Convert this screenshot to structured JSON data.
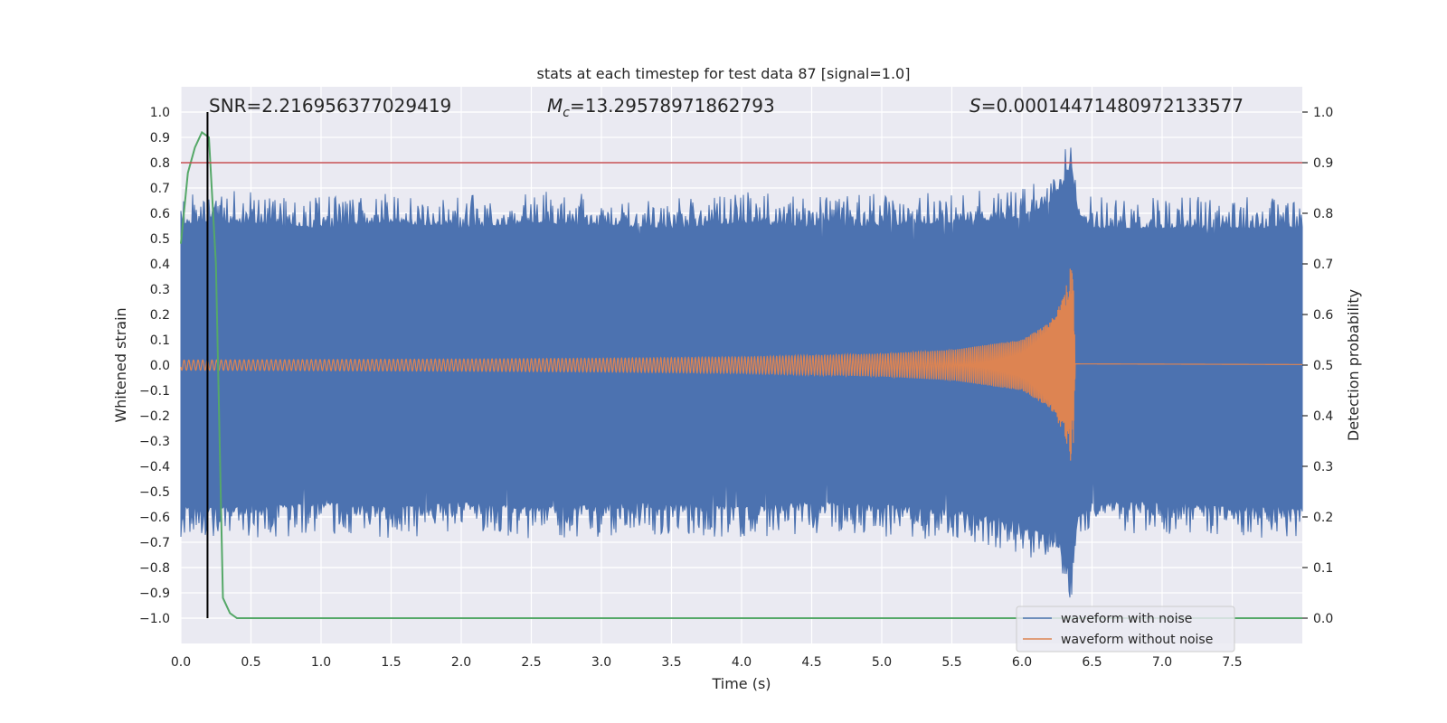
{
  "chart_data": {
    "type": "line",
    "title": "stats at each timestep for test data 87 [signal=1.0]",
    "xlabel": "Time (s)",
    "ylabel": "Whitened strain",
    "ylabel_right": "Detection probability",
    "xlim": [
      0,
      8
    ],
    "ylim": [
      -1.1,
      1.1
    ],
    "ylim_right": [
      -0.05,
      1.05
    ],
    "x_ticks": [
      0.0,
      0.5,
      1.0,
      1.5,
      2.0,
      2.5,
      3.0,
      3.5,
      4.0,
      4.5,
      5.0,
      5.5,
      6.0,
      6.5,
      7.0,
      7.5
    ],
    "x_tick_labels": [
      "0.0",
      "0.5",
      "1.0",
      "1.5",
      "2.0",
      "2.5",
      "3.0",
      "3.5",
      "4.0",
      "4.5",
      "5.0",
      "5.5",
      "6.0",
      "6.5",
      "7.0",
      "7.5"
    ],
    "y_ticks": [
      -1.0,
      -0.9,
      -0.8,
      -0.7,
      -0.6,
      -0.5,
      -0.4,
      -0.3,
      -0.2,
      -0.1,
      0.0,
      0.1,
      0.2,
      0.3,
      0.4,
      0.5,
      0.6,
      0.7,
      0.8,
      0.9,
      1.0
    ],
    "y_tick_labels": [
      "−1.0",
      "−0.9",
      "−0.8",
      "−0.7",
      "−0.6",
      "−0.5",
      "−0.4",
      "−0.3",
      "−0.2",
      "−0.1",
      "0.0",
      "0.1",
      "0.2",
      "0.3",
      "0.4",
      "0.5",
      "0.6",
      "0.7",
      "0.8",
      "0.9",
      "1.0"
    ],
    "y_right_ticks": [
      0.0,
      0.1,
      0.2,
      0.3,
      0.4,
      0.5,
      0.6,
      0.7,
      0.8,
      0.9,
      1.0
    ],
    "y_right_tick_labels": [
      "0.0",
      "0.1",
      "0.2",
      "0.3",
      "0.4",
      "0.5",
      "0.6",
      "0.7",
      "0.8",
      "0.9",
      "1.0"
    ],
    "grid": true,
    "legend_position": "lower-right",
    "annotations": {
      "snr": "SNR=2.216956377029419",
      "mc_symbol": "M",
      "mc_sub": "c",
      "mc_value": "=13.29578971862793",
      "s_symbol": "S",
      "s_value": "=0.00014471480972133577"
    },
    "threshold": 0.9,
    "marker_time": 0.19,
    "series": [
      {
        "name": "waveform with noise",
        "color": "#4c72b0",
        "envelope_x": [
          0.0,
          0.5,
          1.0,
          1.5,
          2.0,
          2.5,
          3.0,
          3.5,
          4.0,
          4.5,
          5.0,
          5.5,
          6.0,
          6.2,
          6.3,
          6.35,
          6.4,
          6.5,
          7.0,
          7.5,
          8.0
        ],
        "envelope_upper": [
          0.62,
          0.62,
          0.6,
          0.62,
          0.6,
          0.62,
          0.61,
          0.6,
          0.62,
          0.6,
          0.61,
          0.62,
          0.64,
          0.7,
          0.78,
          0.85,
          0.66,
          0.6,
          0.6,
          0.6,
          0.6
        ],
        "envelope_lower": [
          -0.62,
          -0.62,
          -0.6,
          -0.62,
          -0.6,
          -0.62,
          -0.61,
          -0.6,
          -0.62,
          -0.6,
          -0.61,
          -0.63,
          -0.68,
          -0.74,
          -0.8,
          -0.86,
          -0.66,
          -0.6,
          -0.6,
          -0.62,
          -0.62
        ]
      },
      {
        "name": "waveform without noise",
        "color": "#dd8452",
        "amp_x": [
          0.0,
          1.0,
          2.0,
          3.0,
          4.0,
          5.0,
          5.5,
          6.0,
          6.2,
          6.3,
          6.35,
          6.37,
          6.38,
          8.0
        ],
        "amp_y": [
          0.02,
          0.022,
          0.024,
          0.027,
          0.032,
          0.045,
          0.06,
          0.1,
          0.17,
          0.27,
          0.4,
          0.3,
          0.01,
          0.005
        ]
      },
      {
        "name": "detection probability",
        "color": "#55a868",
        "x": [
          0.0,
          0.05,
          0.1,
          0.15,
          0.2,
          0.25,
          0.3,
          0.35,
          0.4,
          8.0
        ],
        "y": [
          0.74,
          0.88,
          0.93,
          0.96,
          0.95,
          0.7,
          0.04,
          0.01,
          0.0,
          0.0
        ]
      }
    ]
  }
}
